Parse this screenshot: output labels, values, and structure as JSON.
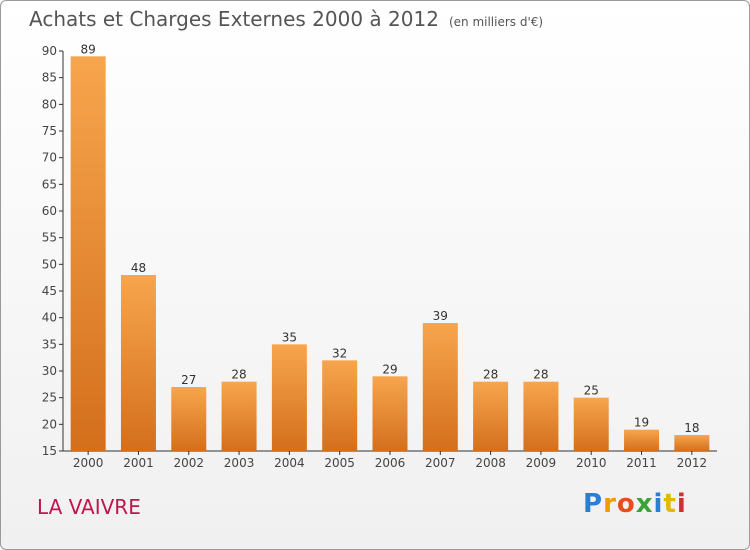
{
  "title": "Achats et Charges Externes 2000 à 2012",
  "unit": "(en milliers d'€)",
  "commune": "LA VAIVRE",
  "logo": {
    "letters": [
      "P",
      "r",
      "o",
      "x",
      "i",
      "t",
      "i"
    ],
    "colors": [
      "#2a7fd4",
      "#f29a00",
      "#e84d1c",
      "#3aa335",
      "#2a7fd4",
      "#e2b900",
      "#d13030"
    ]
  },
  "chart_data": {
    "type": "bar",
    "categories": [
      "2000",
      "2001",
      "2002",
      "2003",
      "2004",
      "2005",
      "2006",
      "2007",
      "2008",
      "2009",
      "2010",
      "2011",
      "2012"
    ],
    "values": [
      89,
      48,
      27,
      28,
      35,
      32,
      29,
      39,
      28,
      28,
      25,
      19,
      18
    ],
    "ylim": [
      15,
      90
    ],
    "yticks": [
      15,
      20,
      25,
      30,
      35,
      40,
      45,
      50,
      55,
      60,
      65,
      70,
      75,
      80,
      85,
      90
    ],
    "grid": false,
    "bar_color": "#e8872e",
    "title": "Achats et Charges Externes 2000 à 2012",
    "xlabel": "",
    "ylabel": ""
  }
}
